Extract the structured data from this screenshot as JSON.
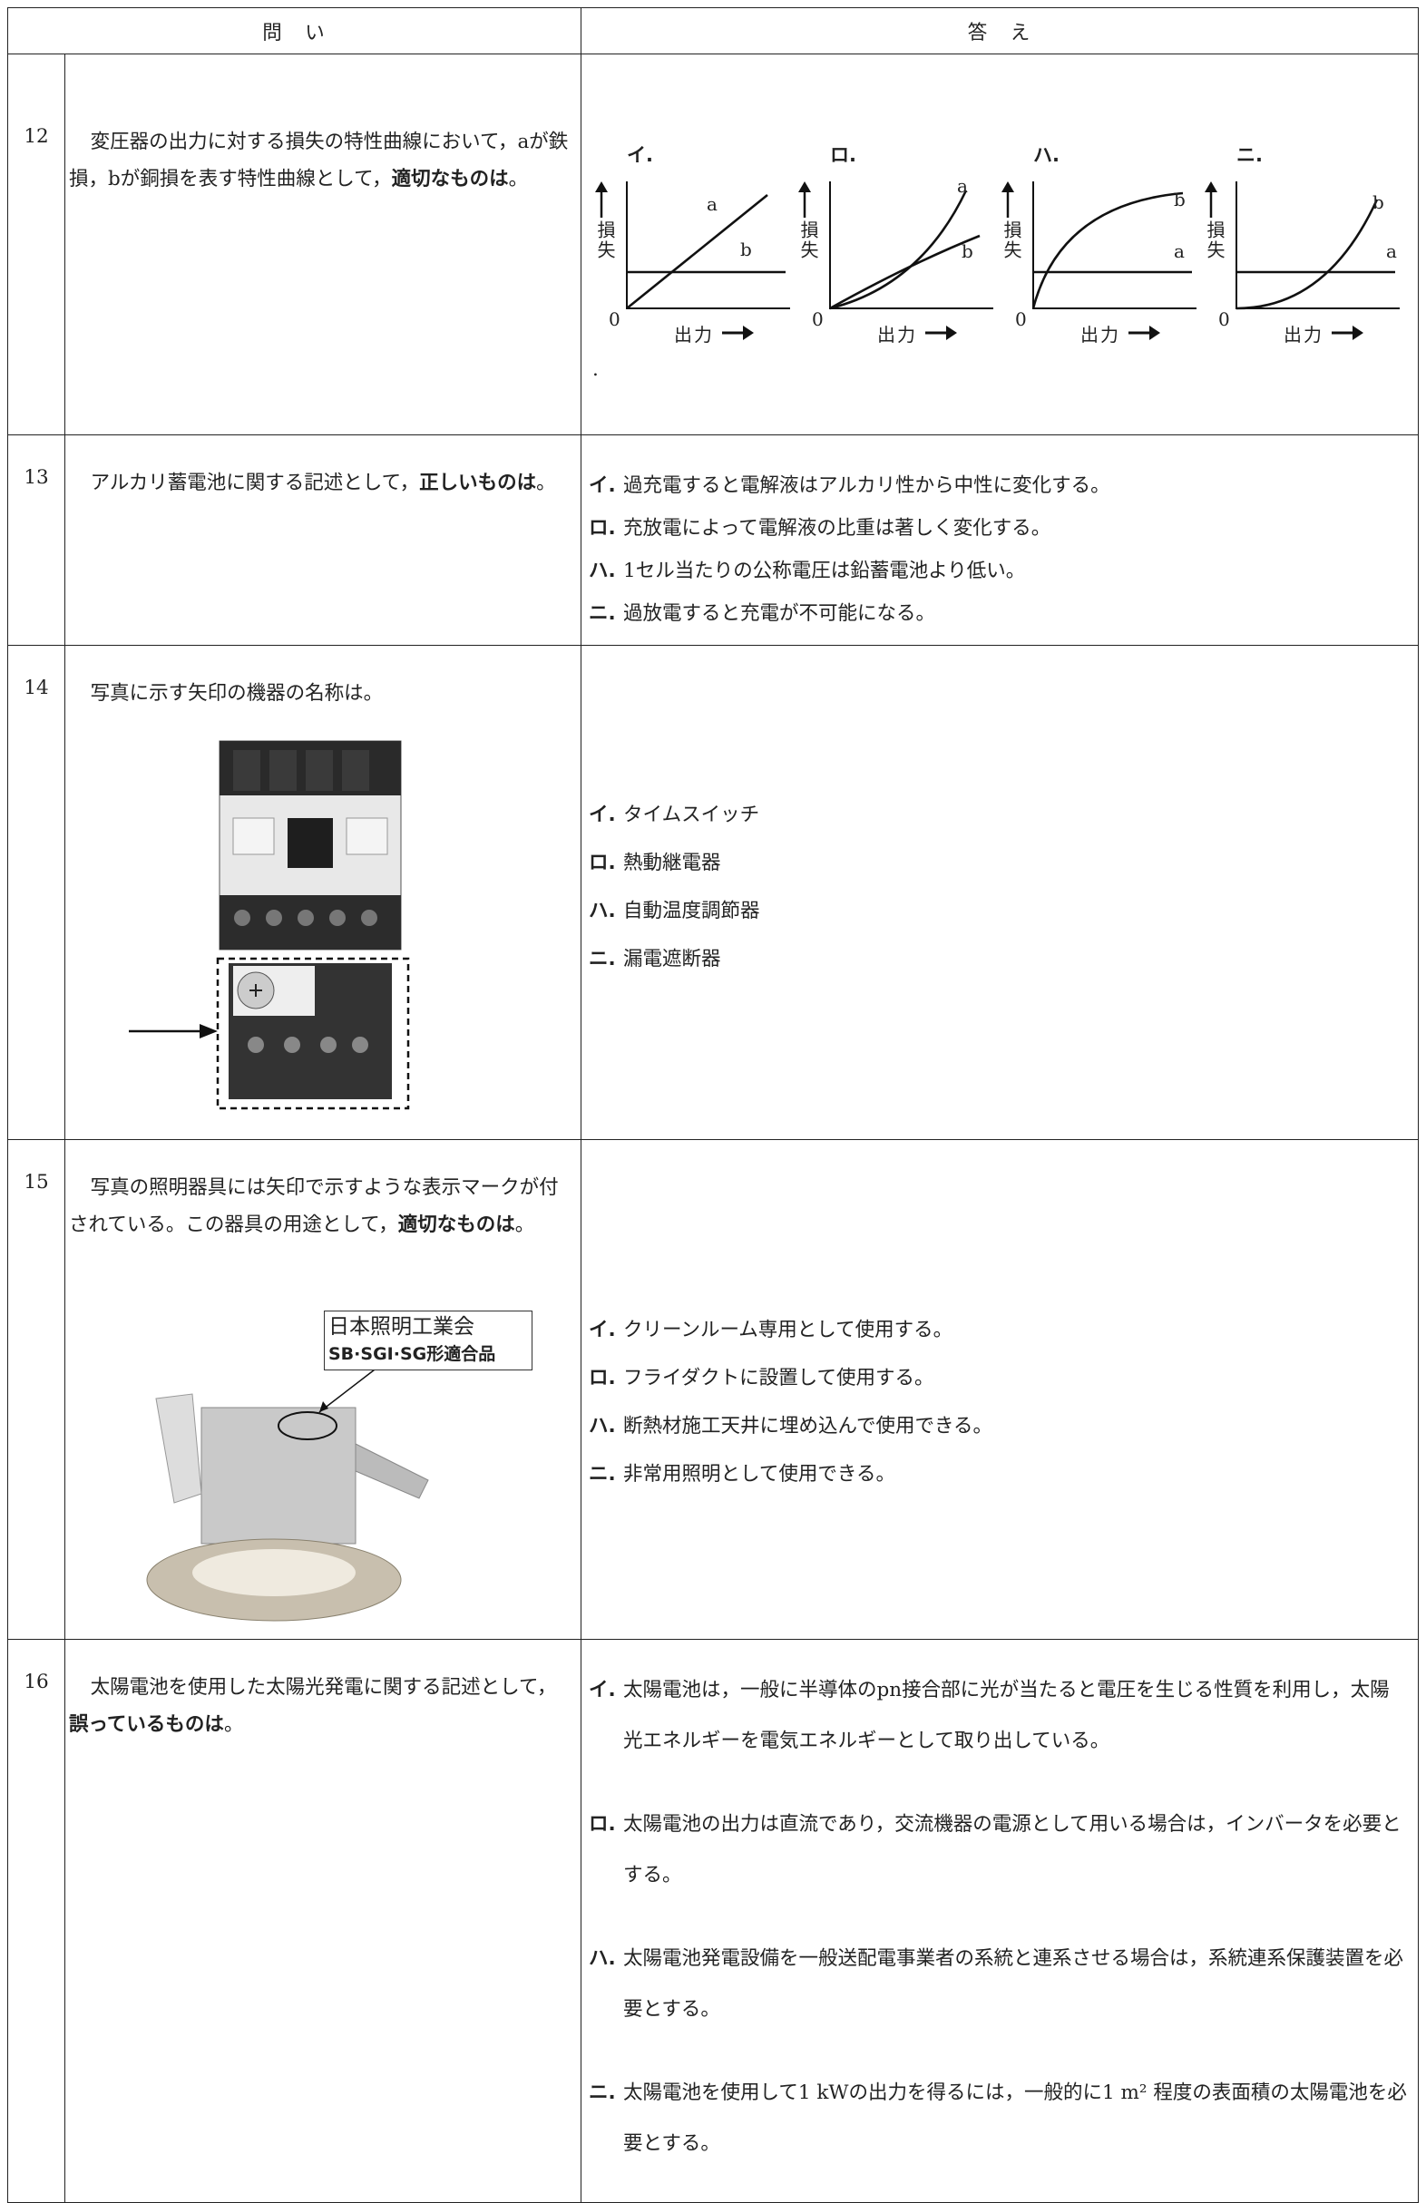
{
  "header": {
    "question": "問　い",
    "answer": "答　え"
  },
  "questions": [
    {
      "number": "12",
      "text": "変圧器の出力に対する損失の特性曲線において，aが鉄損，bが銅損を表す特性曲線として，",
      "emphasis": "適切なものは",
      "ending": "。",
      "graphs": [
        {
          "label": "イ.",
          "y_axis_label": "損失",
          "x_axis_label": "出力",
          "origin": "0",
          "curve_a": "a",
          "curve_b": "b"
        },
        {
          "label": "ロ.",
          "y_axis_label": "損失",
          "x_axis_label": "出力",
          "origin": "0",
          "curve_a": "a",
          "curve_b": "b"
        },
        {
          "label": "ハ.",
          "y_axis_label": "損失",
          "x_axis_label": "出力",
          "origin": "0",
          "curve_a": "a",
          "curve_b": "b"
        },
        {
          "label": "ニ.",
          "y_axis_label": "損失",
          "x_axis_label": "出力",
          "origin": "0",
          "curve_a": "a",
          "curve_b": "b"
        }
      ],
      "note": "."
    },
    {
      "number": "13",
      "text": "アルカリ蓄電池に関する記述として，",
      "emphasis": "正しいものは",
      "ending": "。",
      "choices": [
        {
          "label": "イ.",
          "text": "過充電すると電解液はアルカリ性から中性に変化する。"
        },
        {
          "label": "ロ.",
          "text": "充放電によって電解液の比重は著しく変化する。"
        },
        {
          "label": "ハ.",
          "text": "1セル当たりの公称電圧は鉛蓄電池より低い。"
        },
        {
          "label": "ニ.",
          "text": "過放電すると充電が不可能になる。"
        }
      ]
    },
    {
      "number": "14",
      "text": "写真に示す矢印の機器の名称は。",
      "choices": [
        {
          "label": "イ.",
          "text": "タイムスイッチ"
        },
        {
          "label": "ロ.",
          "text": "熱動継電器"
        },
        {
          "label": "ハ.",
          "text": "自動温度調節器"
        },
        {
          "label": "ニ.",
          "text": "漏電遮断器"
        }
      ]
    },
    {
      "number": "15",
      "text": "写真の照明器具には矢印で示すような表示マークが付されている。この器具の用途として，",
      "emphasis": "適切なものは",
      "ending": "。",
      "photo_label": [
        "日本照明工業会",
        "SB·SGI·SG形適合品"
      ],
      "choices": [
        {
          "label": "イ.",
          "text": "クリーンルーム専用として使用する。"
        },
        {
          "label": "ロ.",
          "text": "フライダクトに設置して使用する。"
        },
        {
          "label": "ハ.",
          "text": "断熱材施工天井に埋め込んで使用できる。"
        },
        {
          "label": "ニ.",
          "text": "非常用照明として使用できる。"
        }
      ]
    },
    {
      "number": "16",
      "text": "太陽電池を使用した太陽光発電に関する記述として，",
      "emphasis": "誤っているものは",
      "ending": "。",
      "choices": [
        {
          "label": "イ.",
          "text": "太陽電池は，一般に半導体のpn接合部に光が当たると電圧を生じる性質を利用し，太陽光エネルギーを電気エネルギーとして取り出している。"
        },
        {
          "label": "ロ.",
          "text": "太陽電池の出力は直流であり，交流機器の電源として用いる場合は，インバータを必要とする。"
        },
        {
          "label": "ハ.",
          "text": "太陽電池発電設備を一般送配電事業者の系統と連系させる場合は，系統連系保護装置を必要とする。"
        },
        {
          "label": "ニ.",
          "text": "太陽電池を使用して1 kWの出力を得るには，一般的に1 m² 程度の表面積の太陽電池を必要とする。"
        }
      ]
    }
  ]
}
